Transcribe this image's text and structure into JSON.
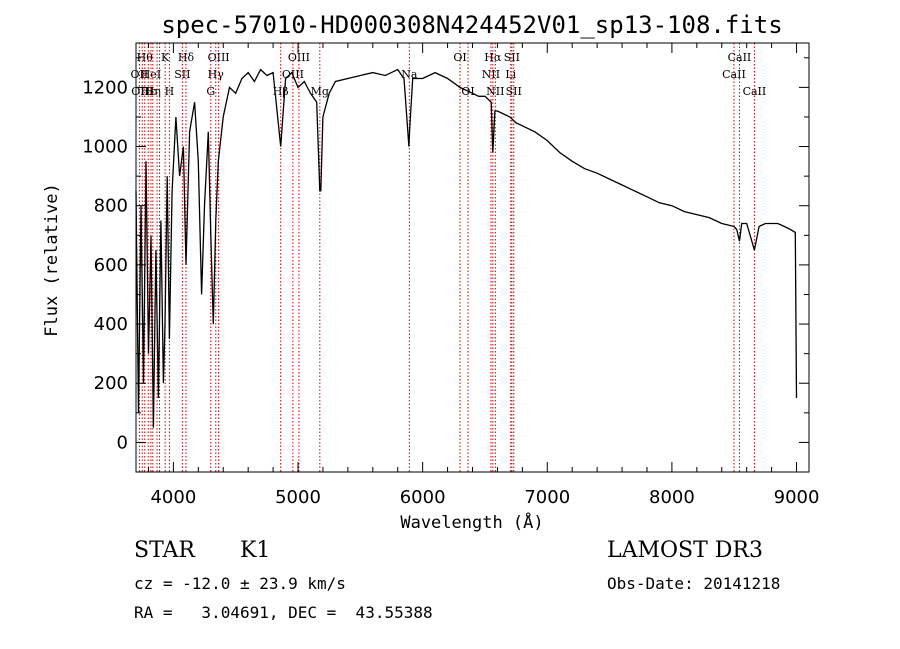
{
  "chart_data": {
    "type": "line",
    "title": "spec-57010-HD000308N424452V01_sp13-108.fits",
    "xlabel": "Wavelength (Å)",
    "ylabel": "Flux (relative)",
    "xlim": [
      3700,
      9100
    ],
    "ylim": [
      -100,
      1350
    ],
    "xticks": [
      4000,
      5000,
      6000,
      7000,
      8000,
      9000
    ],
    "yticks": [
      0,
      200,
      400,
      600,
      800,
      1000,
      1200
    ],
    "series": [
      {
        "name": "flux",
        "x": [
          3700,
          3720,
          3740,
          3760,
          3780,
          3800,
          3820,
          3840,
          3860,
          3880,
          3900,
          3920,
          3933,
          3950,
          3968,
          3990,
          4020,
          4050,
          4080,
          4101,
          4130,
          4170,
          4200,
          4226,
          4250,
          4280,
          4300,
          4320,
          4340,
          4360,
          4400,
          4450,
          4500,
          4550,
          4600,
          4650,
          4700,
          4750,
          4800,
          4861,
          4900,
          4950,
          5000,
          5050,
          5100,
          5150,
          5175,
          5183,
          5200,
          5250,
          5300,
          5400,
          5500,
          5600,
          5700,
          5800,
          5850,
          5890,
          5896,
          5920,
          6000,
          6100,
          6200,
          6300,
          6400,
          6450,
          6500,
          6550,
          6563,
          6580,
          6600,
          6650,
          6700,
          6750,
          6800,
          6900,
          7000,
          7100,
          7200,
          7300,
          7400,
          7500,
          7600,
          7700,
          7800,
          7900,
          8000,
          8100,
          8200,
          8300,
          8400,
          8498,
          8520,
          8542,
          8560,
          8600,
          8662,
          8700,
          8750,
          8800,
          8850,
          8900,
          8950,
          8990,
          9000
        ],
        "y": [
          850,
          100,
          800,
          200,
          950,
          300,
          700,
          50,
          650,
          150,
          750,
          200,
          400,
          900,
          350,
          850,
          1100,
          900,
          1000,
          600,
          1050,
          1150,
          950,
          500,
          800,
          1050,
          700,
          400,
          750,
          950,
          1100,
          1200,
          1180,
          1230,
          1250,
          1220,
          1260,
          1240,
          1250,
          1000,
          1230,
          1250,
          1200,
          1220,
          1180,
          1150,
          850,
          850,
          1100,
          1180,
          1220,
          1230,
          1240,
          1250,
          1240,
          1260,
          1230,
          1000,
          1060,
          1230,
          1230,
          1250,
          1230,
          1200,
          1180,
          1170,
          1170,
          1150,
          980,
          1120,
          1120,
          1110,
          1100,
          1080,
          1070,
          1050,
          1020,
          980,
          950,
          925,
          910,
          890,
          870,
          850,
          830,
          810,
          800,
          780,
          770,
          760,
          740,
          730,
          720,
          680,
          740,
          740,
          650,
          730,
          740,
          740,
          740,
          730,
          720,
          710,
          150
        ]
      }
    ],
    "lines": [
      {
        "wave": 3727,
        "label": "OII",
        "row": 2
      },
      {
        "wave": 3750,
        "label": "OIII",
        "row": 3
      },
      {
        "wave": 3770,
        "label": "Hθ",
        "row": 1
      },
      {
        "wave": 3798,
        "label": "Hε",
        "row": 3
      },
      {
        "wave": 3820,
        "label": "HeI",
        "row": 2
      },
      {
        "wave": 3835,
        "label": "Hη",
        "row": 3
      },
      {
        "wave": 3869,
        "label": "",
        "row": 1
      },
      {
        "wave": 3889,
        "label": "",
        "row": 1
      },
      {
        "wave": 3934,
        "label": "K",
        "row": 1
      },
      {
        "wave": 3968,
        "label": "H",
        "row": 3
      },
      {
        "wave": 4072,
        "label": "SII",
        "row": 2
      },
      {
        "wave": 4101,
        "label": "Hδ",
        "row": 1
      },
      {
        "wave": 4300,
        "label": "G",
        "row": 3
      },
      {
        "wave": 4340,
        "label": "Hγ",
        "row": 2
      },
      {
        "wave": 4363,
        "label": "OIII",
        "row": 1
      },
      {
        "wave": 4861,
        "label": "Hβ",
        "row": 3
      },
      {
        "wave": 4959,
        "label": "OIII",
        "row": 2
      },
      {
        "wave": 5007,
        "label": "OIII",
        "row": 1
      },
      {
        "wave": 5175,
        "label": "Mg",
        "row": 3
      },
      {
        "wave": 5893,
        "label": "Na",
        "row": 2
      },
      {
        "wave": 6300,
        "label": "OI",
        "row": 1
      },
      {
        "wave": 6364,
        "label": "OI",
        "row": 3
      },
      {
        "wave": 6548,
        "label": "NII",
        "row": 2
      },
      {
        "wave": 6563,
        "label": "Hα",
        "row": 1
      },
      {
        "wave": 6583,
        "label": "NII",
        "row": 3
      },
      {
        "wave": 6707,
        "label": "Li",
        "row": 2
      },
      {
        "wave": 6716,
        "label": "SII",
        "row": 1
      },
      {
        "wave": 6731,
        "label": "SII",
        "row": 3
      },
      {
        "wave": 8498,
        "label": "CaII",
        "row": 2
      },
      {
        "wave": 8542,
        "label": "CaII",
        "row": 1
      },
      {
        "wave": 8662,
        "label": "CaII",
        "row": 3
      }
    ]
  },
  "info": {
    "object_class": "STAR",
    "subclass": "K1",
    "survey": "LAMOST DR3",
    "redshift": "cz = -12.0 ± 23.9 km/s",
    "obs_date": "Obs-Date: 20141218",
    "coords": "RA =   3.04691, DEC =  43.55388"
  }
}
